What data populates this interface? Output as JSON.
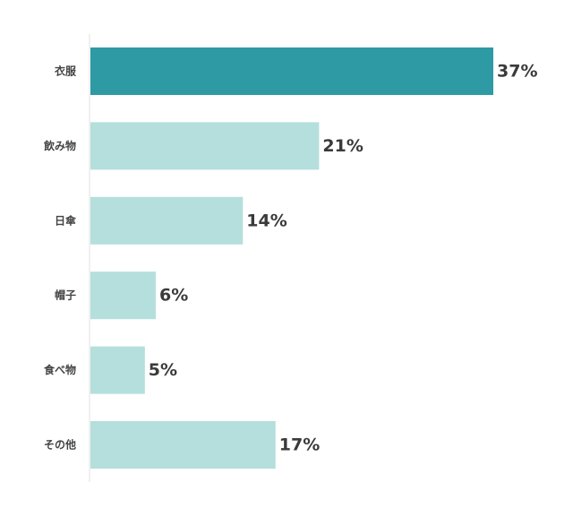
{
  "chart_data": {
    "type": "bar",
    "orientation": "horizontal",
    "categories": [
      "衣服",
      "飲み物",
      "日傘",
      "帽子",
      "食べ物",
      "その他"
    ],
    "values": [
      37,
      21,
      14,
      6,
      5,
      17
    ],
    "value_labels": [
      "37%",
      "21%",
      "14%",
      "6%",
      "5%",
      "17%"
    ],
    "unit": "%",
    "xlim": [
      0,
      37
    ],
    "grid": false,
    "legend": "none",
    "colors": {
      "highlight": "#2e9aa3",
      "default": "#b4dfdc",
      "axis": "#e2e2e2"
    },
    "highlight_index": 0
  }
}
